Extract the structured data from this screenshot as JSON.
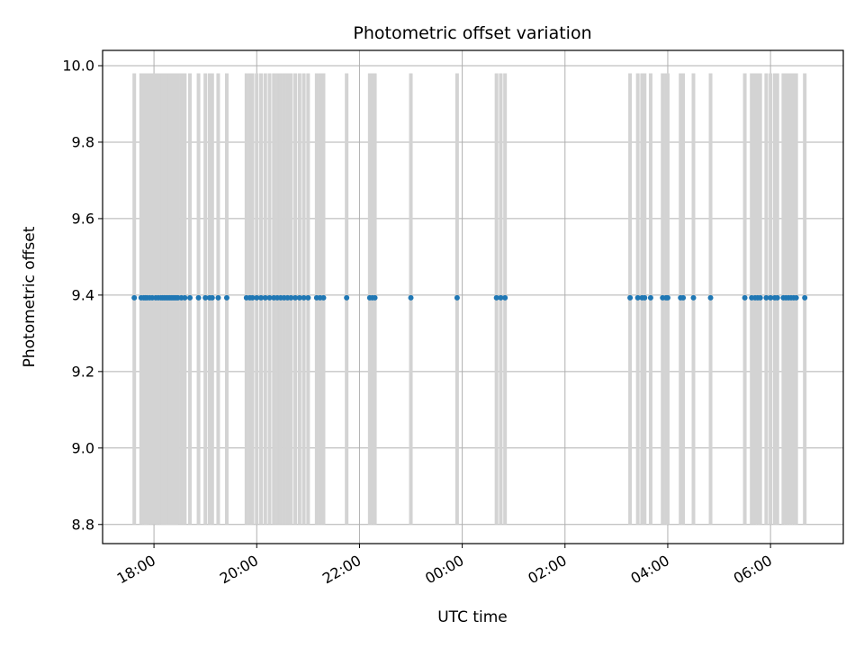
{
  "chart_data": {
    "type": "scatter",
    "title": "Photometric offset variation",
    "xlabel": "UTC time",
    "ylabel": "Photometric offset",
    "x_axis": "time",
    "xlim": [
      "17:00",
      "07:25"
    ],
    "ylim": [
      8.75,
      10.04
    ],
    "x_ticks": [
      "18:00",
      "20:00",
      "22:00",
      "00:00",
      "02:00",
      "04:00",
      "06:00"
    ],
    "y_ticks": [
      "8.8",
      "9.0",
      "9.2",
      "9.4",
      "9.6",
      "9.8",
      "10.0"
    ],
    "grid": true,
    "colors": {
      "marker": "#1f77b4",
      "errorbar": "#d3d3d3",
      "grid": "#b0b0b0"
    },
    "series": [
      {
        "marker": "dot",
        "errorbar": {
          "lower": 8.8,
          "upper": 9.98
        },
        "x": [
          "17:37",
          "17:45",
          "17:48",
          "17:50",
          "17:52",
          "17:55",
          "17:58",
          "18:02",
          "18:05",
          "18:08",
          "18:10",
          "18:12",
          "18:14",
          "18:16",
          "18:18",
          "18:20",
          "18:22",
          "18:24",
          "18:26",
          "18:28",
          "18:32",
          "18:36",
          "18:42",
          "18:52",
          "19:00",
          "19:05",
          "19:08",
          "19:15",
          "19:25",
          "19:48",
          "19:52",
          "19:55",
          "20:00",
          "20:05",
          "20:10",
          "20:15",
          "20:20",
          "20:24",
          "20:28",
          "20:32",
          "20:36",
          "20:40",
          "20:45",
          "20:50",
          "20:55",
          "21:00",
          "21:10",
          "21:14",
          "21:18",
          "21:45",
          "22:12",
          "22:15",
          "22:18",
          "23:00",
          "23:54",
          "24:40",
          "24:45",
          "24:50",
          "27:16",
          "27:25",
          "27:30",
          "27:33",
          "27:40",
          "27:54",
          "27:58",
          "28:00",
          "28:15",
          "28:18",
          "28:30",
          "28:50",
          "29:30",
          "29:38",
          "29:42",
          "29:45",
          "29:48",
          "29:55",
          "30:00",
          "30:05",
          "30:08",
          "30:15",
          "30:18",
          "30:21",
          "30:24",
          "30:27",
          "30:30",
          "30:40"
        ],
        "y": [
          9.393,
          9.393,
          9.393,
          9.393,
          9.393,
          9.393,
          9.393,
          9.393,
          9.393,
          9.393,
          9.393,
          9.393,
          9.393,
          9.393,
          9.393,
          9.393,
          9.393,
          9.393,
          9.393,
          9.393,
          9.393,
          9.393,
          9.393,
          9.393,
          9.393,
          9.393,
          9.393,
          9.393,
          9.393,
          9.393,
          9.393,
          9.393,
          9.393,
          9.393,
          9.393,
          9.393,
          9.393,
          9.393,
          9.393,
          9.393,
          9.393,
          9.393,
          9.393,
          9.393,
          9.393,
          9.393,
          9.393,
          9.393,
          9.393,
          9.393,
          9.393,
          9.393,
          9.393,
          9.393,
          9.393,
          9.393,
          9.393,
          9.393,
          9.393,
          9.393,
          9.393,
          9.393,
          9.393,
          9.393,
          9.393,
          9.393,
          9.393,
          9.393,
          9.393,
          9.393,
          9.393,
          9.393,
          9.393,
          9.393,
          9.393,
          9.393,
          9.393,
          9.393,
          9.393,
          9.393,
          9.393,
          9.393,
          9.393,
          9.393,
          9.393,
          9.393
        ]
      }
    ]
  }
}
